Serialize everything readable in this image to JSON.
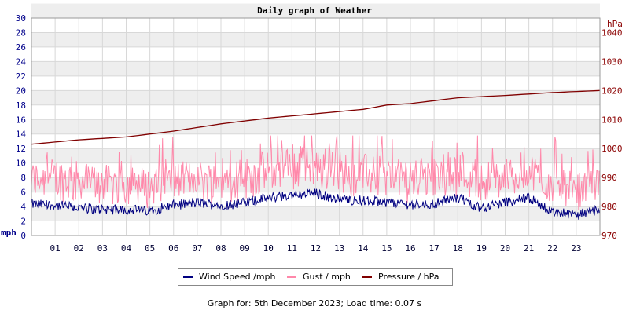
{
  "chart_data": {
    "type": "line",
    "title": "Daily graph of Weather",
    "left_axis": {
      "unit": "mph",
      "ylim": [
        0,
        30
      ],
      "ticks": [
        "0",
        "2",
        "4",
        "6",
        "8",
        "10",
        "12",
        "14",
        "16",
        "18",
        "20",
        "22",
        "24",
        "26",
        "28",
        "30"
      ],
      "color": "#00008b"
    },
    "right_axis": {
      "unit": "hPa",
      "ylim": [
        970,
        1045
      ],
      "ticks": [
        "970",
        "980",
        "990",
        "1000",
        "1010",
        "1020",
        "1030",
        "1040"
      ],
      "color": "#8b0000"
    },
    "x_ticks": [
      "01",
      "02",
      "03",
      "04",
      "05",
      "06",
      "07",
      "08",
      "09",
      "10",
      "11",
      "12",
      "13",
      "14",
      "15",
      "16",
      "17",
      "18",
      "19",
      "20",
      "21",
      "22",
      "23"
    ],
    "grid": true,
    "legend_position": "bottom",
    "series": [
      {
        "name": "Wind Speed /mph",
        "axis": "left",
        "color": "#000080",
        "key_points": [
          [
            0,
            4.3
          ],
          [
            1,
            4.2
          ],
          [
            2,
            3.8
          ],
          [
            3,
            3.6
          ],
          [
            4,
            3.6
          ],
          [
            5,
            3.4
          ],
          [
            6,
            4.2
          ],
          [
            7,
            4.5
          ],
          [
            8,
            4.2
          ],
          [
            9,
            4.5
          ],
          [
            10,
            5.2
          ],
          [
            11,
            5.6
          ],
          [
            12,
            5.8
          ],
          [
            13,
            5.0
          ],
          [
            14,
            4.8
          ],
          [
            15,
            4.6
          ],
          [
            16,
            4.3
          ],
          [
            17,
            4.4
          ],
          [
            18,
            5.2
          ],
          [
            19,
            3.8
          ],
          [
            20,
            4.6
          ],
          [
            21,
            5.2
          ],
          [
            22,
            3.2
          ],
          [
            23,
            2.8
          ],
          [
            24,
            3.6
          ]
        ]
      },
      {
        "name": "Gust / mph",
        "axis": "left",
        "color": "#ff88aa",
        "key_points": [
          [
            0,
            7
          ],
          [
            1,
            7.5
          ],
          [
            2,
            7
          ],
          [
            3,
            6.5
          ],
          [
            4,
            6.5
          ],
          [
            5,
            6
          ],
          [
            6,
            6.8
          ],
          [
            7,
            7.2
          ],
          [
            8,
            7
          ],
          [
            9,
            7.5
          ],
          [
            10,
            8.5
          ],
          [
            11,
            9
          ],
          [
            12,
            9.2
          ],
          [
            13,
            8.5
          ],
          [
            14,
            8
          ],
          [
            15,
            7.5
          ],
          [
            16,
            7.2
          ],
          [
            17,
            7.5
          ],
          [
            18,
            9
          ],
          [
            19,
            7
          ],
          [
            20,
            7.5
          ],
          [
            21,
            8.5
          ],
          [
            22,
            6
          ],
          [
            23,
            5.5
          ],
          [
            24,
            6
          ]
        ]
      },
      {
        "name": "Pressure / hPa",
        "axis": "right",
        "color": "#800000",
        "key_points": [
          [
            0,
            1001.5
          ],
          [
            2,
            1003
          ],
          [
            4,
            1004
          ],
          [
            6,
            1006
          ],
          [
            8,
            1008.5
          ],
          [
            10,
            1010.5
          ],
          [
            12,
            1012
          ],
          [
            14,
            1013.5
          ],
          [
            15,
            1015
          ],
          [
            16,
            1015.5
          ],
          [
            17,
            1016.5
          ],
          [
            18,
            1017.5
          ],
          [
            20,
            1018.3
          ],
          [
            22,
            1019.3
          ],
          [
            24,
            1020
          ]
        ]
      }
    ]
  },
  "footer": "Graph for: 5th December 2023; Load time: 0.07 s"
}
